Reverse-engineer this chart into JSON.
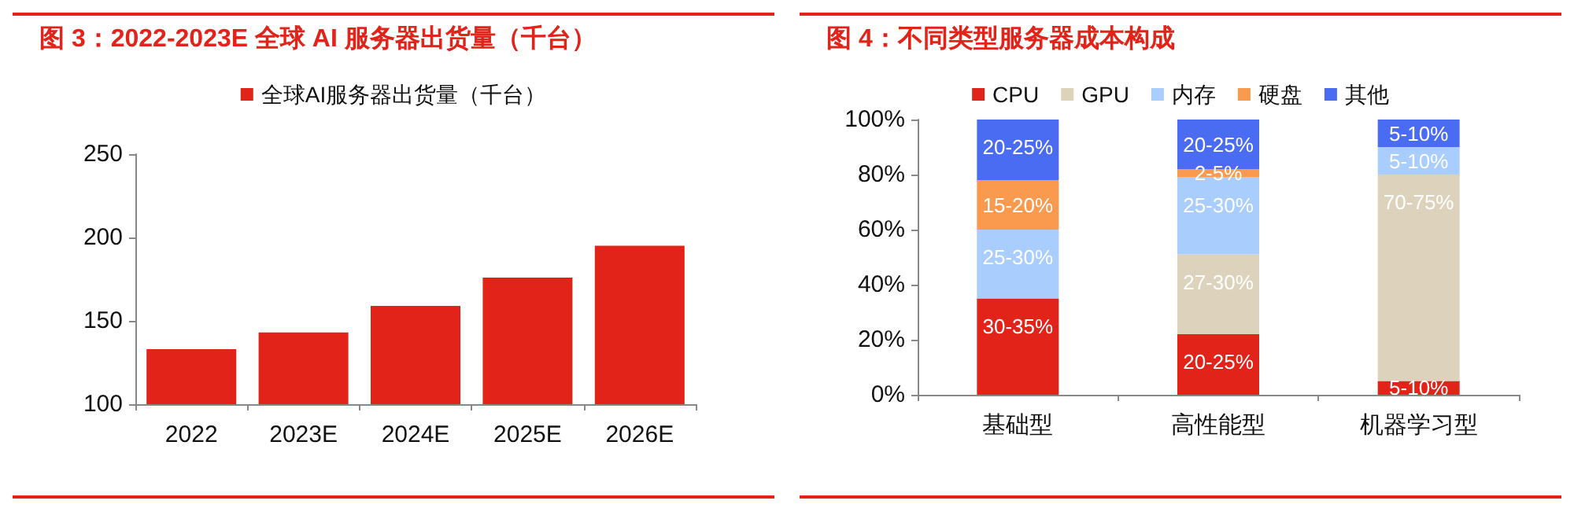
{
  "chart_data": [
    {
      "type": "bar",
      "title": "图 3：2022-2023E 全球 AI 服务器出货量（千台）",
      "categories": [
        "2022",
        "2023E",
        "2024E",
        "2025E",
        "2026E"
      ],
      "series": [
        {
          "name": "全球AI服务器出货量（千台）",
          "color": "#e2231a",
          "values": [
            133,
            143,
            159,
            176,
            195
          ]
        }
      ],
      "ylim": [
        100,
        250
      ],
      "yticks": [
        100,
        150,
        200,
        250
      ],
      "grid": false,
      "legend": "top"
    },
    {
      "type": "bar",
      "title": "图 4：不同类型服务器成本构成",
      "categories": [
        "基础型",
        "高性能型",
        "机器学习型"
      ],
      "stacked": true,
      "series": [
        {
          "name": "CPU",
          "color": "#e2231a",
          "values": [
            35,
            22,
            5
          ]
        },
        {
          "name": "GPU",
          "color": "#ddd3bc",
          "values": [
            0,
            29,
            75
          ]
        },
        {
          "name": "内存",
          "color": "#a9cdfc",
          "values": [
            25,
            28,
            10
          ]
        },
        {
          "name": "硬盘",
          "color": "#fa9a4f",
          "values": [
            18,
            3,
            0
          ]
        },
        {
          "name": "其他",
          "color": "#4a6cf3",
          "values": [
            22,
            18,
            10
          ]
        }
      ],
      "annotations": [
        {
          "text": "30-35%",
          "x": "基础型",
          "y": 35
        },
        {
          "text": "25-30%",
          "x": "基础型",
          "y": 60
        },
        {
          "text": "15-20%",
          "x": "基础型",
          "y": 78
        },
        {
          "text": "20-25%",
          "x": "基础型",
          "y": 100
        },
        {
          "text": "20-25%",
          "x": "高性能型",
          "y": 22
        },
        {
          "text": "27-30%",
          "x": "高性能型",
          "y": 51
        },
        {
          "text": "25-30%",
          "x": "高性能型",
          "y": 79
        },
        {
          "text": "2-5%",
          "x": "高性能型",
          "y": 82
        },
        {
          "text": "20-25%",
          "x": "高性能型",
          "y": 100
        },
        {
          "text": "5-10%",
          "x": "机器学习型",
          "y": 5
        },
        {
          "text": "70-75%",
          "x": "机器学习型",
          "y": 80
        },
        {
          "text": "5-10%",
          "x": "机器学习型",
          "y": 90
        },
        {
          "text": "5-10%",
          "x": "机器学习型",
          "y": 100
        }
      ],
      "ylim": [
        0,
        100
      ],
      "yticks": [
        {
          "value": 0,
          "label": "0%"
        },
        {
          "value": 20,
          "label": "20%"
        },
        {
          "value": 40,
          "label": "40%"
        },
        {
          "value": 60,
          "label": "60%"
        },
        {
          "value": 80,
          "label": "80%"
        },
        {
          "value": 100,
          "label": "100%"
        }
      ],
      "grid": false,
      "legend": "top"
    }
  ]
}
